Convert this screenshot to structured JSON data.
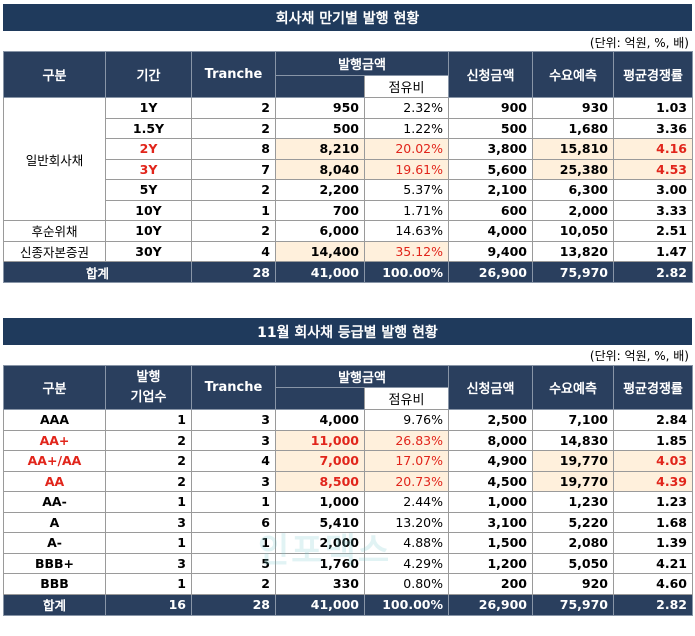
{
  "maturity": {
    "title": "회사채 만기별 발행 현황",
    "unit": "(단위: 억원, %, 배)",
    "headers": {
      "category": "구분",
      "period": "기간",
      "tranche": "Tranche",
      "amount": "발행금액",
      "share": "점유비",
      "subscribe": "신청금액",
      "demand": "수요예측",
      "competition": "평균경쟁률"
    },
    "groups": {
      "general": "일반회사채",
      "subordinated": "후순위채",
      "hybrid": "신종자본증권"
    },
    "rows": [
      {
        "period": "1Y",
        "tranche": "2",
        "amount": "950",
        "share": "2.32%",
        "subscribe": "900",
        "demand": "930",
        "competition": "1.03"
      },
      {
        "period": "1.5Y",
        "tranche": "2",
        "amount": "500",
        "share": "1.22%",
        "subscribe": "500",
        "demand": "1,680",
        "competition": "3.36"
      },
      {
        "period": "2Y",
        "tranche": "8",
        "amount": "8,210",
        "share": "20.02%",
        "subscribe": "3,800",
        "demand": "15,810",
        "competition": "4.16"
      },
      {
        "period": "3Y",
        "tranche": "7",
        "amount": "8,040",
        "share": "19.61%",
        "subscribe": "5,600",
        "demand": "25,380",
        "competition": "4.53"
      },
      {
        "period": "5Y",
        "tranche": "2",
        "amount": "2,200",
        "share": "5.37%",
        "subscribe": "2,100",
        "demand": "6,300",
        "competition": "3.00"
      },
      {
        "period": "10Y",
        "tranche": "1",
        "amount": "700",
        "share": "1.71%",
        "subscribe": "600",
        "demand": "2,000",
        "competition": "3.33"
      },
      {
        "period": "10Y",
        "tranche": "2",
        "amount": "6,000",
        "share": "14.63%",
        "subscribe": "4,000",
        "demand": "10,050",
        "competition": "2.51"
      },
      {
        "period": "30Y",
        "tranche": "4",
        "amount": "14,400",
        "share": "35.12%",
        "subscribe": "9,400",
        "demand": "13,820",
        "competition": "1.47"
      }
    ],
    "total": {
      "label": "합계",
      "tranche": "28",
      "amount": "41,000",
      "share": "100.00%",
      "subscribe": "26,900",
      "demand": "75,970",
      "competition": "2.82"
    }
  },
  "grade": {
    "title": "11월 회사채 등급별 발행 현황",
    "unit": "(단위: 억원, %, 배)",
    "headers": {
      "category": "구분",
      "issuers_1": "발행",
      "issuers_2": "기업수",
      "tranche": "Tranche",
      "amount": "발행금액",
      "share": "점유비",
      "subscribe": "신청금액",
      "demand": "수요예측",
      "competition": "평균경쟁률"
    },
    "rows": [
      {
        "grade": "AAA",
        "issuers": "1",
        "tranche": "3",
        "amount": "4,000",
        "share": "9.76%",
        "subscribe": "2,500",
        "demand": "7,100",
        "competition": "2.84"
      },
      {
        "grade": "AA+",
        "issuers": "2",
        "tranche": "3",
        "amount": "11,000",
        "share": "26.83%",
        "subscribe": "8,000",
        "demand": "14,830",
        "competition": "1.85"
      },
      {
        "grade": "AA+/AA",
        "issuers": "2",
        "tranche": "4",
        "amount": "7,000",
        "share": "17.07%",
        "subscribe": "4,900",
        "demand": "19,770",
        "competition": "4.03"
      },
      {
        "grade": "AA",
        "issuers": "2",
        "tranche": "3",
        "amount": "8,500",
        "share": "20.73%",
        "subscribe": "4,500",
        "demand": "19,770",
        "competition": "4.39"
      },
      {
        "grade": "AA-",
        "issuers": "1",
        "tranche": "1",
        "amount": "1,000",
        "share": "2.44%",
        "subscribe": "1,000",
        "demand": "1,230",
        "competition": "1.23"
      },
      {
        "grade": "A",
        "issuers": "3",
        "tranche": "6",
        "amount": "5,410",
        "share": "13.20%",
        "subscribe": "3,100",
        "demand": "5,220",
        "competition": "1.68"
      },
      {
        "grade": "A-",
        "issuers": "1",
        "tranche": "1",
        "amount": "2,000",
        "share": "4.88%",
        "subscribe": "1,500",
        "demand": "2,080",
        "competition": "1.39"
      },
      {
        "grade": "BBB+",
        "issuers": "3",
        "tranche": "5",
        "amount": "1,760",
        "share": "4.29%",
        "subscribe": "1,200",
        "demand": "5,050",
        "competition": "4.21"
      },
      {
        "grade": "BBB",
        "issuers": "1",
        "tranche": "2",
        "amount": "330",
        "share": "0.80%",
        "subscribe": "200",
        "demand": "920",
        "competition": "4.60"
      }
    ],
    "total": {
      "label": "합계",
      "issuers": "16",
      "tranche": "28",
      "amount": "41,000",
      "share": "100.00%",
      "subscribe": "26,900",
      "demand": "75,970",
      "competition": "2.82"
    }
  },
  "watermark": "인포맥스",
  "colors": {
    "header_bg": "#2a3f5e",
    "title_bg": "#1f3a5c",
    "highlight": "#fff0dc",
    "red": "#e1251b"
  }
}
